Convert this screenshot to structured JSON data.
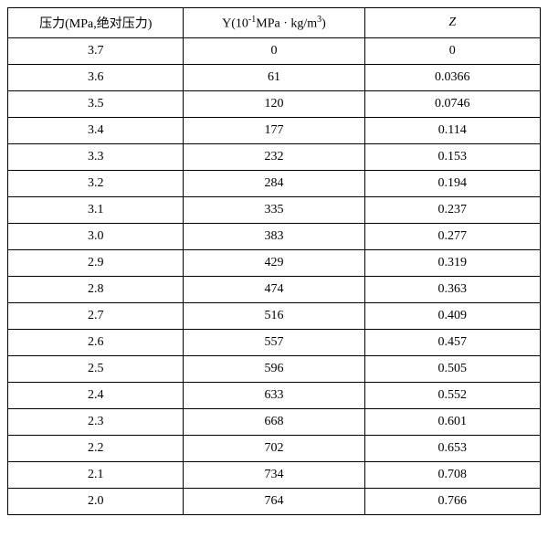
{
  "table": {
    "headers": {
      "pressure": "压力(MPa,绝对压力)",
      "y_prefix": "Y(10",
      "y_exp": "-1",
      "y_mid": "MPa · kg/m",
      "y_sup3": "3",
      "y_suffix": ")",
      "z": "Z"
    },
    "rows": [
      {
        "pressure": "3.7",
        "y": "0",
        "z": "0"
      },
      {
        "pressure": "3.6",
        "y": "61",
        "z": "0.0366"
      },
      {
        "pressure": "3.5",
        "y": "120",
        "z": "0.0746"
      },
      {
        "pressure": "3.4",
        "y": "177",
        "z": "0.114"
      },
      {
        "pressure": "3.3",
        "y": "232",
        "z": "0.153"
      },
      {
        "pressure": "3.2",
        "y": "284",
        "z": "0.194"
      },
      {
        "pressure": "3.1",
        "y": "335",
        "z": "0.237"
      },
      {
        "pressure": "3.0",
        "y": "383",
        "z": "0.277"
      },
      {
        "pressure": "2.9",
        "y": "429",
        "z": "0.319"
      },
      {
        "pressure": "2.8",
        "y": "474",
        "z": "0.363"
      },
      {
        "pressure": "2.7",
        "y": "516",
        "z": "0.409"
      },
      {
        "pressure": "2.6",
        "y": "557",
        "z": "0.457"
      },
      {
        "pressure": "2.5",
        "y": "596",
        "z": "0.505"
      },
      {
        "pressure": "2.4",
        "y": "633",
        "z": "0.552"
      },
      {
        "pressure": "2.3",
        "y": "668",
        "z": "0.601"
      },
      {
        "pressure": "2.2",
        "y": "702",
        "z": "0.653"
      },
      {
        "pressure": "2.1",
        "y": "734",
        "z": "0.708"
      },
      {
        "pressure": "2.0",
        "y": "764",
        "z": "0.766"
      }
    ]
  }
}
